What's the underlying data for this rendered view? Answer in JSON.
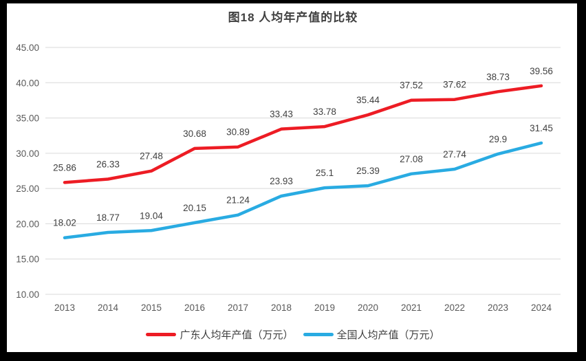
{
  "chart_data": {
    "type": "line",
    "title": "图18 人均年产值的比较",
    "categories": [
      "2013",
      "2014",
      "2015",
      "2016",
      "2017",
      "2018",
      "2019",
      "2020",
      "2021",
      "2022",
      "2023",
      "2024"
    ],
    "series": [
      {
        "name": "广东人均年产值（万元）",
        "color": "#ED1C24",
        "values": [
          25.86,
          26.33,
          27.48,
          30.68,
          30.89,
          33.43,
          33.78,
          35.44,
          37.52,
          37.62,
          38.73,
          39.56
        ]
      },
      {
        "name": "全国人均产值（万元）",
        "color": "#29ABE2",
        "values": [
          18.02,
          18.77,
          19.04,
          20.15,
          21.24,
          23.93,
          25.1,
          25.39,
          27.08,
          27.74,
          29.9,
          31.45
        ]
      }
    ],
    "y_axis": {
      "min": 10,
      "max": 45,
      "step": 5,
      "tick_format": "0.00"
    },
    "x_axis": {
      "tick_labels": [
        "2013",
        "2014",
        "2015",
        "2016",
        "2017",
        "2018",
        "2019",
        "2020",
        "2021",
        "2022",
        "2023",
        "2024"
      ]
    },
    "grid": true,
    "data_labels": true,
    "legend_position": "bottom",
    "colors": {
      "gridline": "#D9D9D9",
      "axis_text": "#595959",
      "data_label_text": "#404040",
      "title_text": "#404040",
      "frame": "#000000",
      "background": "#FFFFFF"
    }
  }
}
